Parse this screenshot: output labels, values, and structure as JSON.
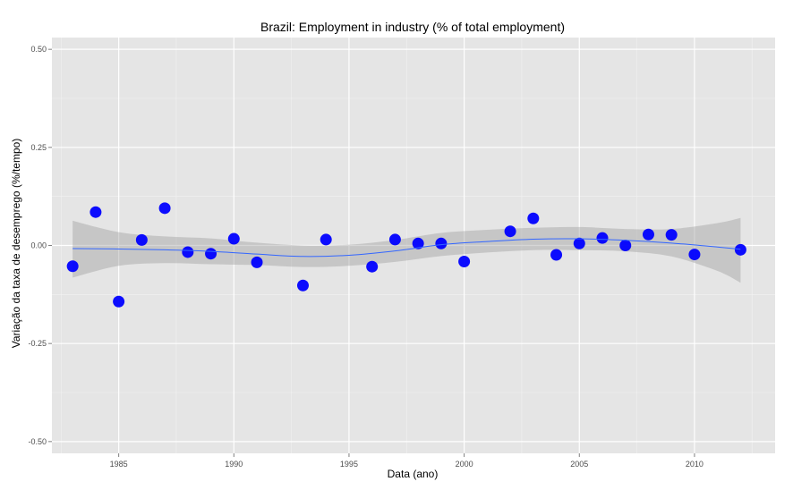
{
  "chart_data": {
    "type": "scatter",
    "title": "Brazil: Employment in industry (% of total employment)",
    "xlabel": "Data (ano)",
    "ylabel": "Variação da taxa de desemprego (%/tempo)",
    "xlim": [
      1982.1,
      2013.5
    ],
    "ylim": [
      -0.53,
      0.53
    ],
    "x_ticks": [
      1985,
      1990,
      1995,
      2000,
      2005,
      2010
    ],
    "x_tick_labels": [
      "1985",
      "1990",
      "1995",
      "2000",
      "2005",
      "2010"
    ],
    "y_ticks": [
      -0.5,
      -0.25,
      0.0,
      0.25,
      0.5
    ],
    "y_tick_labels": [
      "-0.50",
      "-0.25",
      "0.00",
      "0.25",
      "0.50"
    ],
    "grid": true,
    "points": {
      "x": [
        1983,
        1984,
        1985,
        1986,
        1987,
        1988,
        1989,
        1990,
        1991,
        1993,
        1994,
        1996,
        1997,
        1998,
        1999,
        2000,
        2002,
        2003,
        2004,
        2005,
        2006,
        2007,
        2008,
        2009,
        2010,
        2012
      ],
      "y": [
        -0.053,
        0.085,
        -0.143,
        0.014,
        0.095,
        -0.017,
        -0.021,
        0.017,
        -0.043,
        -0.102,
        0.015,
        -0.054,
        0.015,
        0.005,
        0.005,
        -0.041,
        0.036,
        0.069,
        -0.024,
        0.005,
        0.019,
        0.0,
        0.028,
        0.027,
        -0.023,
        -0.011
      ],
      "color": "#0000ff"
    },
    "smooth": {
      "x": [
        1983,
        1985,
        1987,
        1989,
        1991,
        1993,
        1995,
        1997,
        1999,
        2001,
        2003,
        2005,
        2007,
        2009,
        2011,
        2012
      ],
      "y": [
        -0.008,
        -0.009,
        -0.011,
        -0.015,
        -0.022,
        -0.028,
        -0.025,
        -0.014,
        0.002,
        0.01,
        0.016,
        0.017,
        0.013,
        0.006,
        -0.004,
        -0.01
      ],
      "lower": [
        -0.082,
        -0.052,
        -0.045,
        -0.048,
        -0.05,
        -0.055,
        -0.052,
        -0.042,
        -0.027,
        -0.018,
        -0.012,
        -0.012,
        -0.015,
        -0.028,
        -0.065,
        -0.095
      ],
      "upper": [
        0.063,
        0.034,
        0.023,
        0.018,
        0.007,
        0.0,
        0.002,
        0.014,
        0.032,
        0.04,
        0.045,
        0.047,
        0.042,
        0.042,
        0.057,
        0.07
      ],
      "line_color": "#3366ff",
      "band_color": "#999999"
    },
    "panel_background": "#e5e5e5",
    "grid_color": "#ffffff"
  }
}
